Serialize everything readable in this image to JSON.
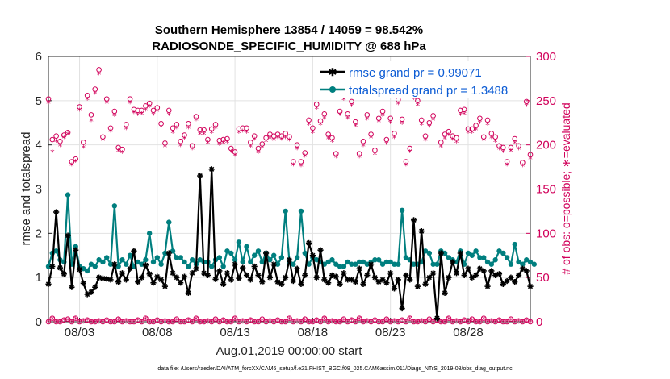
{
  "chart_data": {
    "type": "line",
    "title": "Southern Hemisphere 13854 / 14059 = 98.542%",
    "subtitle": "RADIOSONDE_SPECIFIC_HUMIDITY @ 688 hPa",
    "xlabel": "Aug.01,2019 00:00:00 start",
    "ylabel_left": "rmse and totalspread",
    "ylabel_right": "# of obs: o=possible; ∗=evaluated",
    "footnote": "data file: /Users/raeder/DAI/ATM_forcXX/CAM6_setup/f.e21.FHIST_BGC.f09_025.CAM6assim.011/Diags_NTrS_2019-08/obs_diag_output.nc",
    "xlim": [
      1.0,
      32.0
    ],
    "ylim_left": [
      0,
      6
    ],
    "ylim_right": [
      0,
      300
    ],
    "x_ticks": [
      3,
      8,
      13,
      18,
      23,
      28
    ],
    "x_tick_labels": [
      "08/03",
      "08/08",
      "08/13",
      "08/18",
      "08/23",
      "08/28"
    ],
    "y_left_ticks": [
      "0",
      "1",
      "2",
      "3",
      "4",
      "5",
      "6"
    ],
    "y_right_ticks": [
      "0",
      "50",
      "100",
      "150",
      "200",
      "250",
      "300"
    ],
    "colors": {
      "rmse": "#000000",
      "spread": "#007f7f",
      "obs": "#d1005a",
      "legend_text": "#0b5bd4"
    },
    "legend": [
      "rmse grand pr = 0.99071",
      "totalspread grand pr = 1.3488"
    ],
    "x_start": 1.0,
    "x_step": 0.25,
    "series": [
      {
        "name": "rmse",
        "values": [
          0.85,
          1.25,
          2.48,
          1.22,
          1.08,
          1.95,
          0.78,
          1.62,
          1.18,
          0.87,
          0.62,
          0.67,
          0.78,
          1.0,
          0.98,
          0.97,
          0.95,
          1.3,
          0.9,
          1.1,
          0.95,
          1.2,
          1.6,
          0.9,
          1.0,
          1.28,
          1.08,
          0.88,
          1.02,
          0.95,
          0.8,
          1.55,
          1.1,
          1.0,
          0.88,
          1.02,
          0.65,
          1.1,
          1.2,
          3.3,
          1.1,
          1.05,
          3.45,
          0.96,
          1.15,
          0.85,
          1.1,
          0.95,
          1.3,
          0.98,
          1.22,
          1.05,
          0.95,
          1.25,
          1.05,
          0.9,
          1.55,
          1.0,
          1.3,
          0.9,
          0.85,
          1.0,
          1.4,
          0.92,
          1.2,
          0.85,
          1.05,
          1.78,
          1.5,
          1.0,
          1.62,
          0.95,
          0.88,
          1.05,
          1.02,
          0.85,
          1.1,
          0.95,
          0.95,
          0.9,
          1.2,
          0.85,
          1.05,
          1.3,
          1.0,
          0.9,
          0.95,
          0.88,
          1.1,
          0.75,
          0.95,
          0.3,
          1.05,
          0.95,
          2.3,
          0.8,
          2.05,
          0.85,
          1.0,
          1.1,
          0.08,
          1.55,
          0.65,
          1.0,
          1.35,
          1.1,
          1.55,
          1.05,
          1.2,
          1.0,
          1.05,
          1.2,
          1.15,
          0.8,
          1.15,
          1.05,
          1.08,
          0.85,
          0.92,
          1.0,
          0.9,
          1.05,
          1.2,
          1.15,
          0.8
        ]
      },
      {
        "name": "totalspread",
        "values": [
          1.25,
          1.55,
          1.6,
          1.4,
          1.35,
          2.87,
          1.3,
          1.7,
          1.25,
          1.2,
          1.15,
          1.3,
          1.25,
          1.4,
          1.35,
          1.45,
          1.3,
          2.62,
          1.25,
          1.4,
          1.3,
          1.5,
          1.25,
          1.35,
          1.3,
          1.4,
          2.0,
          1.35,
          1.45,
          1.3,
          1.55,
          2.25,
          1.6,
          1.45,
          1.45,
          1.35,
          1.25,
          1.4,
          1.3,
          1.4,
          1.35,
          1.35,
          1.25,
          1.4,
          1.45,
          1.25,
          1.6,
          1.55,
          1.4,
          1.8,
          1.35,
          1.7,
          1.35,
          1.5,
          1.6,
          1.35,
          1.55,
          1.4,
          1.5,
          1.3,
          1.45,
          2.5,
          1.35,
          1.3,
          1.45,
          2.5,
          1.55,
          1.3,
          1.45,
          1.4,
          1.35,
          1.3,
          1.35,
          1.4,
          1.3,
          1.25,
          1.25,
          1.35,
          1.3,
          1.3,
          1.35,
          1.35,
          1.3,
          1.35,
          1.4,
          1.4,
          1.3,
          1.35,
          1.35,
          1.3,
          1.3,
          2.52,
          1.45,
          1.4,
          1.3,
          1.3,
          1.35,
          1.6,
          1.55,
          1.3,
          1.3,
          1.6,
          1.55,
          1.45,
          1.4,
          1.35,
          1.6,
          1.3,
          1.55,
          1.5,
          1.6,
          1.45,
          1.45,
          1.35,
          1.3,
          1.4,
          1.6,
          1.55,
          1.45,
          1.3,
          1.75,
          1.35,
          1.3,
          1.4,
          1.35,
          1.3
        ]
      },
      {
        "name": "obs_possible",
        "values": [
          252,
          206,
          210,
          204,
          211,
          214,
          181,
          184,
          243,
          203,
          256,
          234,
          263,
          285,
          209,
          252,
          219,
          238,
          197,
          195,
          223,
          252,
          240,
          239,
          239,
          244,
          247,
          239,
          242,
          224,
          202,
          239,
          219,
          223,
          204,
          211,
          224,
          199,
          232,
          217,
          217,
          206,
          218,
          223,
          205,
          206,
          207,
          196,
          192,
          218,
          219,
          219,
          203,
          210,
          196,
          201,
          208,
          212,
          210,
          212,
          210,
          213,
          209,
          181,
          200,
          181,
          191,
          228,
          219,
          246,
          227,
          235,
          212,
          208,
          190,
          238,
          256,
          235,
          249,
          226,
          190,
          204,
          234,
          212,
          194,
          230,
          238,
          206,
          230,
          213,
          251,
          229,
          181,
          196,
          257,
          250,
          228,
          210,
          225,
          233,
          265,
          203,
          212,
          215,
          210,
          208,
          239,
          240,
          218,
          218,
          222,
          230,
          209,
          228,
          213,
          209,
          199,
          197,
          181,
          197,
          207,
          199,
          180,
          249,
          189
        ]
      },
      {
        "name": "obs_evaluated",
        "values": [
          247,
          192,
          204,
          199,
          208,
          212,
          177,
          181,
          239,
          197,
          251,
          227,
          258,
          280,
          205,
          247,
          215,
          233,
          193,
          191,
          218,
          247,
          236,
          234,
          235,
          239,
          243,
          234,
          238,
          220,
          198,
          234,
          214,
          219,
          199,
          207,
          219,
          195,
          228,
          212,
          212,
          202,
          214,
          219,
          200,
          202,
          203,
          192,
          188,
          214,
          215,
          214,
          198,
          206,
          191,
          197,
          204,
          207,
          205,
          208,
          206,
          208,
          205,
          177,
          195,
          176,
          187,
          223,
          214,
          241,
          223,
          230,
          207,
          204,
          186,
          234,
          251,
          230,
          244,
          221,
          186,
          199,
          229,
          208,
          189,
          226,
          233,
          201,
          225,
          208,
          246,
          224,
          177,
          192,
          252,
          245,
          223,
          205,
          220,
          228,
          260,
          198,
          207,
          211,
          206,
          203,
          234,
          235,
          214,
          214,
          217,
          225,
          205,
          223,
          208,
          204,
          195,
          192,
          177,
          193,
          202,
          195,
          176,
          244,
          184
        ]
      },
      {
        "name": "obs_low_possible",
        "values": [
          0,
          4,
          0,
          0,
          2,
          3,
          0,
          4,
          0,
          1,
          2,
          0,
          0,
          1,
          0,
          2,
          0,
          0,
          3,
          0,
          1,
          0,
          0,
          2,
          0,
          4,
          0,
          0,
          2,
          0,
          1,
          0,
          0,
          3,
          0,
          0,
          2,
          0,
          4,
          0,
          0,
          1,
          0,
          3,
          0,
          2,
          0,
          0,
          4,
          0,
          1,
          0,
          2,
          0,
          0,
          3,
          0,
          1,
          0,
          2,
          0,
          0,
          4,
          0,
          1,
          0,
          3,
          0,
          0,
          2,
          0,
          4,
          0,
          1,
          0,
          0,
          3,
          0,
          2,
          0,
          4,
          0,
          1,
          0,
          2,
          0,
          0,
          3,
          0,
          1,
          0,
          2,
          0,
          4,
          0,
          0,
          1,
          0,
          3,
          0,
          2,
          0,
          0,
          4,
          0,
          1,
          0,
          2,
          0,
          3,
          0,
          0,
          4,
          0,
          1,
          0,
          2,
          0,
          0,
          3,
          0,
          1,
          0,
          2,
          0
        ]
      },
      {
        "name": "obs_low_evaluated",
        "values": [
          0,
          3,
          0,
          0,
          2,
          2,
          0,
          3,
          0,
          1,
          2,
          0,
          0,
          1,
          0,
          2,
          0,
          0,
          2,
          0,
          1,
          0,
          0,
          2,
          0,
          3,
          0,
          0,
          2,
          0,
          1,
          0,
          0,
          2,
          0,
          0,
          2,
          0,
          3,
          0,
          0,
          1,
          0,
          2,
          0,
          2,
          0,
          0,
          3,
          0,
          1,
          0,
          2,
          0,
          0,
          2,
          0,
          1,
          0,
          2,
          0,
          0,
          3,
          0,
          1,
          0,
          2,
          0,
          0,
          2,
          0,
          3,
          0,
          1,
          0,
          0,
          2,
          0,
          2,
          0,
          3,
          0,
          1,
          0,
          2,
          0,
          0,
          2,
          0,
          1,
          0,
          2,
          0,
          3,
          0,
          0,
          1,
          0,
          2,
          0,
          2,
          0,
          0,
          3,
          0,
          1,
          0,
          2,
          0,
          2,
          0,
          0,
          3,
          0,
          1,
          0,
          2,
          0,
          0,
          2,
          0,
          1,
          0,
          2,
          0
        ]
      }
    ]
  }
}
